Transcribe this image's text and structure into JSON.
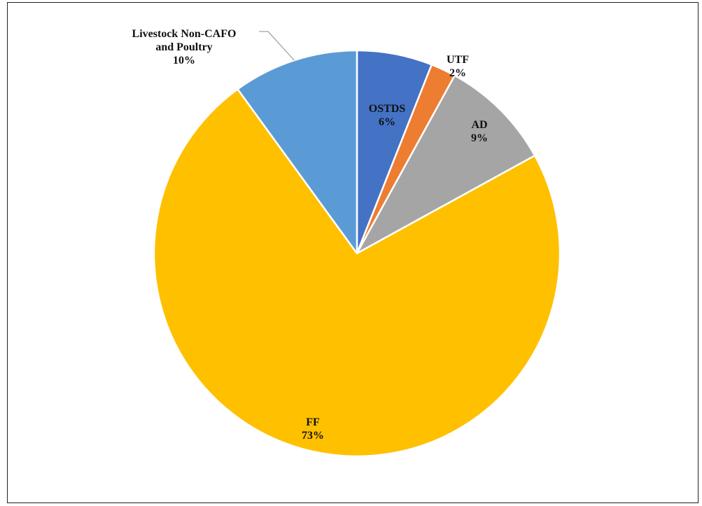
{
  "chart_data": {
    "type": "pie",
    "title": "",
    "start_angle_deg": 0,
    "direction": "clockwise",
    "slices": [
      {
        "name": "OSTDS",
        "value": 6,
        "display": "6%",
        "color": "#4472C4"
      },
      {
        "name": "UTF",
        "value": 2,
        "display": "2%",
        "color": "#ED7D31"
      },
      {
        "name": "AD",
        "value": 9,
        "display": "9%",
        "color": "#A5A5A5"
      },
      {
        "name": "FF",
        "value": 73,
        "display": "73%",
        "color": "#FFC000"
      },
      {
        "name": "Livestock Non-CAFO and Poultry",
        "label_lines": [
          "Livestock Non-CAFO",
          "and Poultry"
        ],
        "value": 10,
        "display": "10%",
        "color": "#5B9BD5"
      }
    ]
  }
}
